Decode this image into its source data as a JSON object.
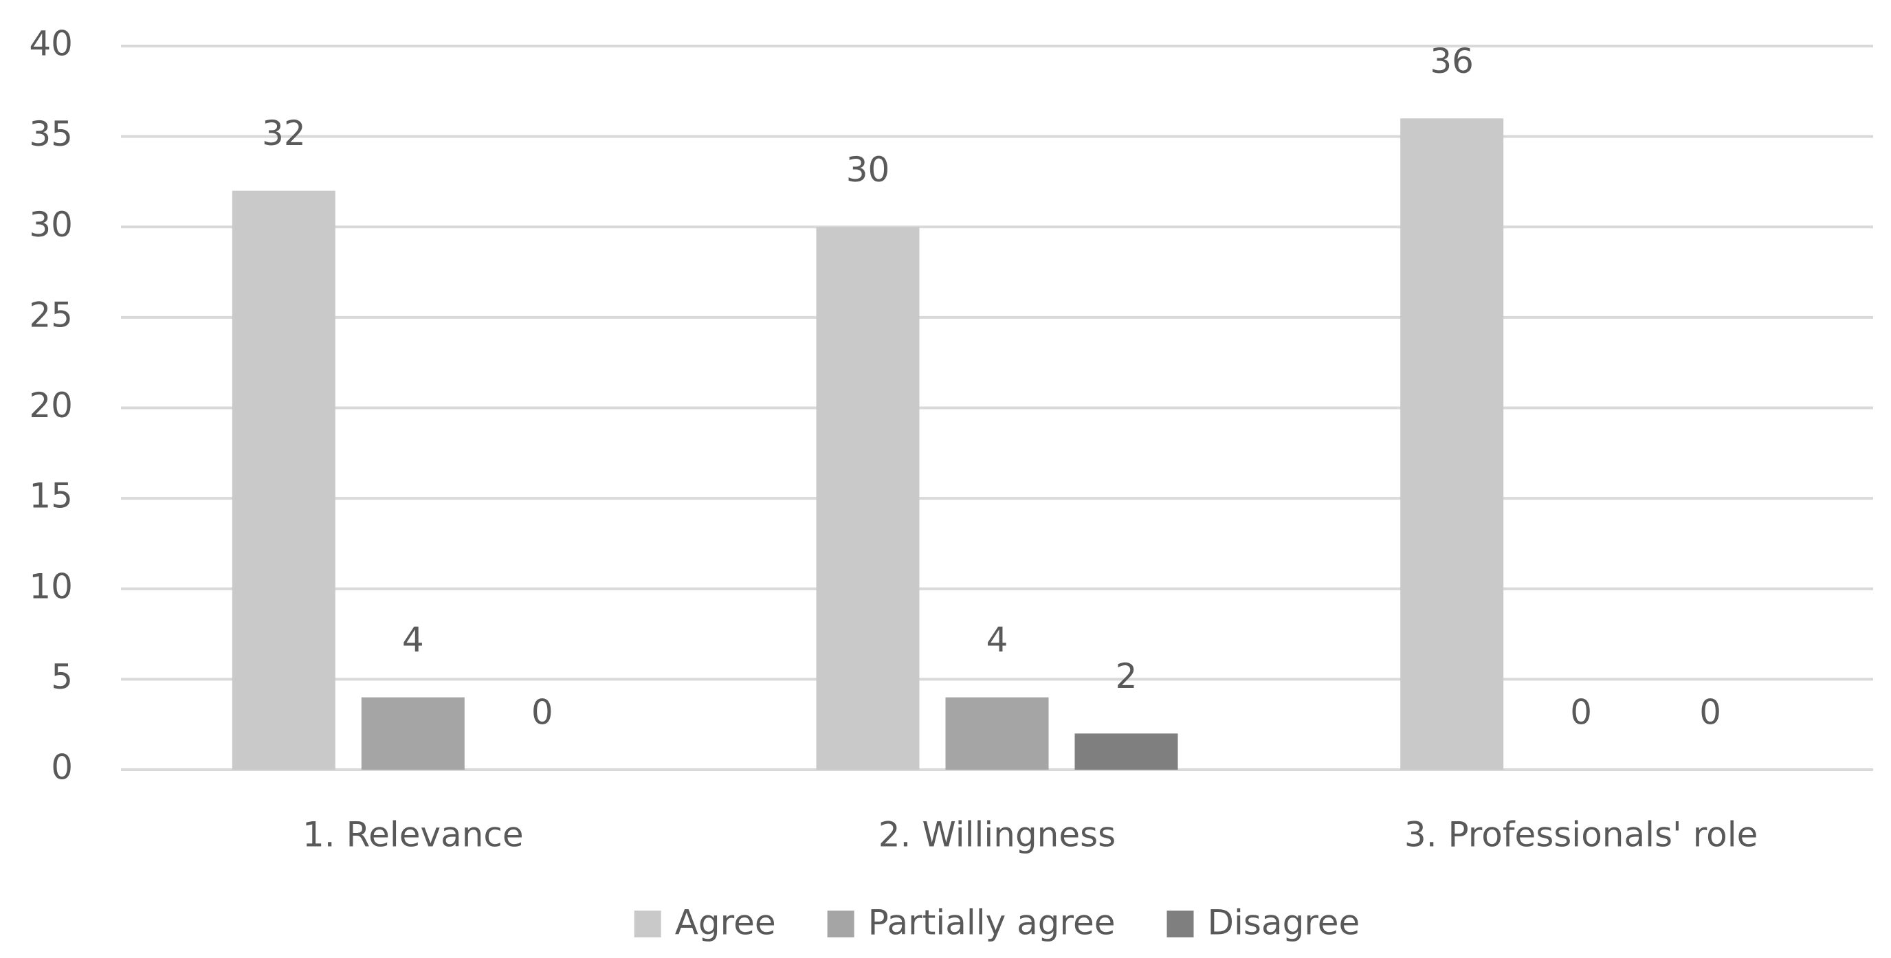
{
  "chart_data": {
    "type": "bar",
    "categories": [
      "1. Relevance",
      "2. Willingness",
      "3. Professionals' role"
    ],
    "series": [
      {
        "name": "Agree",
        "color": "#c9c9c9",
        "values": [
          32,
          30,
          36
        ]
      },
      {
        "name": "Partially agree",
        "color": "#a5a5a5",
        "values": [
          4,
          4,
          0
        ]
      },
      {
        "name": "Disagree",
        "color": "#7f7f7f",
        "values": [
          0,
          2,
          0
        ]
      }
    ],
    "ylim": [
      0,
      40
    ],
    "yticks": [
      0,
      5,
      10,
      15,
      20,
      25,
      30,
      35,
      40
    ],
    "grid": true,
    "legend": "bottom"
  }
}
